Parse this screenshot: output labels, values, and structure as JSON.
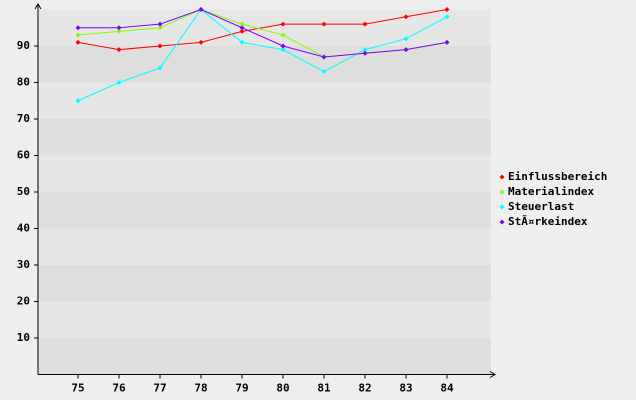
{
  "chart_data": {
    "type": "line",
    "categories": [
      "75",
      "76",
      "77",
      "78",
      "79",
      "80",
      "81",
      "82",
      "83",
      "84"
    ],
    "series": [
      {
        "name": "Einflussbereich",
        "color": "#ff0000",
        "values": [
          91,
          89,
          90,
          91,
          94,
          96,
          96,
          96,
          98,
          100
        ]
      },
      {
        "name": "Materialindex",
        "color": "#80ff00",
        "values": [
          93,
          94,
          95,
          100,
          96,
          93,
          87,
          88,
          89,
          91
        ]
      },
      {
        "name": "Steuerlast",
        "color": "#00ffff",
        "values": [
          75,
          80,
          84,
          100,
          91,
          89,
          83,
          89,
          92,
          98
        ]
      },
      {
        "name": "StÃ¤rkeindex",
        "color": "#8000ff",
        "values": [
          95,
          95,
          96,
          100,
          95,
          90,
          87,
          88,
          89,
          91
        ]
      }
    ],
    "ylim": [
      0,
      100
    ],
    "yticks": [
      10,
      20,
      30,
      40,
      50,
      60,
      70,
      80,
      90
    ],
    "grid": true,
    "legend": "right"
  }
}
